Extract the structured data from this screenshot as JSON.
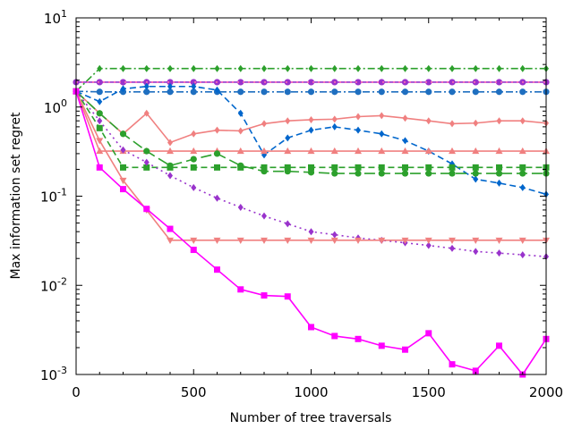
{
  "chart_data": {
    "type": "line",
    "title": "",
    "xlabel": "Number of tree traversals",
    "ylabel": "Max information set regret",
    "xlim": [
      0,
      2000
    ],
    "ylim": [
      0.001,
      10
    ],
    "yscale": "log",
    "grid": false,
    "legend": "none",
    "x_ticks": [
      "0",
      "500",
      "1000",
      "1500",
      "2000"
    ],
    "y_ticks": [
      {
        "base": "10",
        "exp": "-3",
        "value": 0.001
      },
      {
        "base": "10",
        "exp": "-2",
        "value": 0.01
      },
      {
        "base": "10",
        "exp": "-1",
        "value": 0.1
      },
      {
        "base": "10",
        "exp": "0",
        "value": 1
      },
      {
        "base": "10",
        "exp": "1",
        "value": 10
      }
    ],
    "x": [
      0,
      100,
      200,
      300,
      400,
      500,
      600,
      700,
      800,
      900,
      1000,
      1100,
      1200,
      1300,
      1400,
      1500,
      1600,
      1700,
      1800,
      1900,
      2000
    ],
    "series": [
      {
        "color": "#2ca02c",
        "marker": "diamond",
        "dash": "dashdot",
        "values": [
          1.5,
          2.7,
          2.7,
          2.7,
          2.7,
          2.7,
          2.7,
          2.7,
          2.7,
          2.7,
          2.7,
          2.7,
          2.7,
          2.7,
          2.7,
          2.7,
          2.7,
          2.7,
          2.7,
          2.7,
          2.7
        ]
      },
      {
        "color": "#9933cc",
        "marker": "circle",
        "dash": "solid",
        "values": [
          1.9,
          1.9,
          1.9,
          1.9,
          1.9,
          1.9,
          1.9,
          1.9,
          1.9,
          1.9,
          1.9,
          1.9,
          1.9,
          1.9,
          1.9,
          1.9,
          1.9,
          1.9,
          1.9,
          1.9,
          1.9
        ]
      },
      {
        "color": "#ff69b4",
        "marker": "none",
        "dash": "dotted",
        "values": [
          1.9,
          1.9,
          1.9,
          1.9,
          1.9,
          1.9,
          1.9,
          1.9,
          1.9,
          1.9,
          1.9,
          1.9,
          1.9,
          1.9,
          1.9,
          1.9,
          1.9,
          1.9,
          1.9,
          1.9,
          1.9
        ]
      },
      {
        "color": "#1f6fc0",
        "marker": "circle",
        "dash": "dashdot",
        "values": [
          1.5,
          1.48,
          1.48,
          1.48,
          1.48,
          1.48,
          1.48,
          1.48,
          1.48,
          1.48,
          1.48,
          1.48,
          1.48,
          1.48,
          1.48,
          1.48,
          1.48,
          1.48,
          1.48,
          1.48,
          1.48
        ]
      },
      {
        "color": "#0066cc",
        "marker": "diamond",
        "dash": "dashed",
        "values": [
          1.5,
          1.15,
          1.6,
          1.7,
          1.7,
          1.7,
          1.55,
          0.85,
          0.29,
          0.45,
          0.55,
          0.6,
          0.55,
          0.5,
          0.42,
          0.32,
          0.23,
          0.155,
          0.14,
          0.125,
          0.105
        ]
      },
      {
        "color": "#f08080",
        "marker": "diamond",
        "dash": "solid",
        "values": [
          1.5,
          0.85,
          0.5,
          0.85,
          0.4,
          0.5,
          0.55,
          0.54,
          0.65,
          0.7,
          0.72,
          0.73,
          0.78,
          0.8,
          0.75,
          0.7,
          0.65,
          0.66,
          0.7,
          0.7,
          0.66
        ]
      },
      {
        "color": "#f08080",
        "marker": "triangle-up",
        "dash": "solid",
        "values": [
          1.5,
          0.32,
          0.32,
          0.32,
          0.32,
          0.32,
          0.32,
          0.32,
          0.32,
          0.32,
          0.32,
          0.32,
          0.32,
          0.32,
          0.32,
          0.32,
          0.32,
          0.32,
          0.32,
          0.32,
          0.32
        ]
      },
      {
        "color": "#2ca02c",
        "marker": "circle",
        "dash": "longdash",
        "values": [
          1.5,
          0.85,
          0.5,
          0.32,
          0.22,
          0.26,
          0.3,
          0.22,
          0.19,
          0.19,
          0.185,
          0.18,
          0.18,
          0.18,
          0.18,
          0.18,
          0.18,
          0.18,
          0.18,
          0.18,
          0.18
        ]
      },
      {
        "color": "#2ca02c",
        "marker": "square",
        "dash": "dashed",
        "values": [
          1.5,
          0.58,
          0.21,
          0.21,
          0.21,
          0.21,
          0.21,
          0.21,
          0.21,
          0.21,
          0.21,
          0.21,
          0.21,
          0.21,
          0.21,
          0.21,
          0.21,
          0.21,
          0.21,
          0.21,
          0.21
        ]
      },
      {
        "color": "#9933cc",
        "marker": "diamond",
        "dash": "dotted",
        "values": [
          1.5,
          0.7,
          0.33,
          0.24,
          0.17,
          0.125,
          0.095,
          0.075,
          0.06,
          0.049,
          0.04,
          0.037,
          0.034,
          0.032,
          0.03,
          0.028,
          0.026,
          0.024,
          0.023,
          0.022,
          0.021
        ]
      },
      {
        "color": "#f08080",
        "marker": "triangle-down",
        "dash": "solid",
        "values": [
          1.5,
          0.42,
          0.15,
          0.07,
          0.032,
          0.032,
          0.032,
          0.032,
          0.032,
          0.032,
          0.032,
          0.032,
          0.032,
          0.032,
          0.032,
          0.032,
          0.032,
          0.032,
          0.032,
          0.032,
          0.032
        ]
      },
      {
        "color": "#ff00ff",
        "marker": "square",
        "dash": "solid",
        "values": [
          1.5,
          0.21,
          0.12,
          0.072,
          0.043,
          0.025,
          0.015,
          0.009,
          0.0077,
          0.0075,
          0.0034,
          0.0027,
          0.0025,
          0.0021,
          0.0019,
          0.0029,
          0.0013,
          0.0011,
          0.0021,
          0.001,
          0.0025
        ]
      }
    ]
  }
}
